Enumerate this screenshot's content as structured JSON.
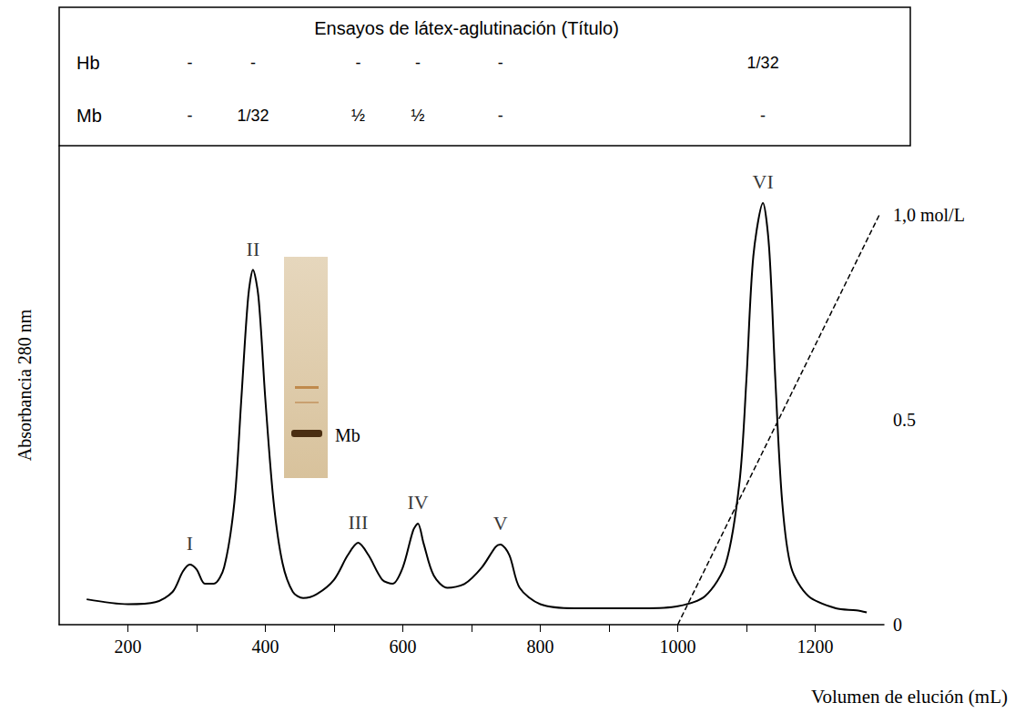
{
  "chart_data": {
    "type": "line",
    "x_label": "Volumen de elución (mL)",
    "y_label": "Absorbancia 280 nm",
    "xlim": [
      100,
      1300
    ],
    "xticks": [
      200,
      400,
      600,
      800,
      1000,
      1200
    ],
    "ylim": [
      0,
      1.17
    ],
    "y2lim": [
      0,
      1.17
    ],
    "y2ticks": [
      0,
      0.5,
      {
        "value": 1,
        "label": "1,0 mol/L"
      }
    ],
    "grid": false,
    "series": [
      {
        "color": "#000000",
        "line_style": "solid",
        "x": [
          140,
          200,
          240,
          265,
          280,
          290,
          300,
          312,
          325,
          340,
          355,
          365,
          375,
          382,
          390,
          400,
          412,
          425,
          440,
          455,
          475,
          500,
          520,
          535,
          550,
          570,
          585,
          600,
          615,
          622,
          630,
          645,
          665,
          690,
          715,
          735,
          742,
          755,
          770,
          800,
          850,
          950,
          1000,
          1040,
          1070,
          1090,
          1100,
          1110,
          1124,
          1133,
          1142,
          1152,
          1165,
          1190,
          1230,
          1260,
          1275
        ],
        "values": [
          0.062,
          0.05,
          0.055,
          0.08,
          0.13,
          0.147,
          0.135,
          0.1,
          0.1,
          0.14,
          0.3,
          0.55,
          0.8,
          0.867,
          0.8,
          0.55,
          0.3,
          0.15,
          0.08,
          0.065,
          0.075,
          0.11,
          0.17,
          0.2,
          0.17,
          0.11,
          0.1,
          0.14,
          0.23,
          0.247,
          0.2,
          0.12,
          0.09,
          0.1,
          0.14,
          0.19,
          0.196,
          0.17,
          0.09,
          0.05,
          0.04,
          0.04,
          0.045,
          0.07,
          0.15,
          0.35,
          0.6,
          0.9,
          1.03,
          0.92,
          0.6,
          0.3,
          0.14,
          0.07,
          0.04,
          0.035,
          0.03
        ]
      },
      {
        "axis": "y2",
        "color": "#000000",
        "line_style": "dashed",
        "x": [
          1000,
          1293
        ],
        "values": [
          0,
          1
        ]
      }
    ],
    "peaks": {
      "labels": [
        "I",
        "II",
        "III",
        "IV",
        "V",
        "VI"
      ],
      "x": [
        290,
        382,
        535,
        622,
        742,
        1124
      ],
      "values": [
        0.147,
        0.867,
        0.2,
        0.247,
        0.196,
        1.03
      ]
    },
    "table": {
      "title": "Ensayos de látex-aglutinación (Título)",
      "rows": [
        {
          "label": "Hb",
          "values": [
            "-",
            "-",
            "-",
            "-",
            "-",
            "1/32"
          ]
        },
        {
          "label": "Mb",
          "values": [
            "-",
            "1/32",
            "½",
            "½",
            "-",
            "-"
          ]
        }
      ]
    },
    "inset": {
      "label": "Mb"
    }
  }
}
